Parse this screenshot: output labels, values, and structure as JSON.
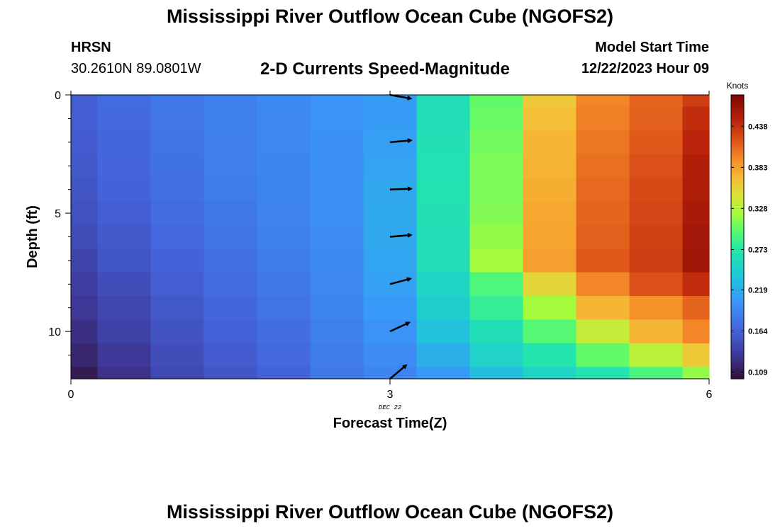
{
  "page": {
    "title": "Mississippi River Outflow Ocean Cube (NGOFS2)",
    "title_repeat": "Mississippi River Outflow Ocean Cube (NGOFS2)",
    "station": "HRSN",
    "coordinates": "30.2610N  89.0801W",
    "product": "2-D Currents Speed-Magnitude",
    "model_start_label": "Model Start Time",
    "model_start_value": "12/22/2023 Hour 09"
  },
  "chart_data": {
    "type": "heatmap",
    "xlabel": "Forecast Time(Z)",
    "ylabel": "Depth (ft)",
    "xlim": [
      0,
      6
    ],
    "ylim": [
      0,
      12
    ],
    "y_inverted": true,
    "x_ticks": [
      "0",
      "3",
      "6"
    ],
    "x_tick_values": [
      0,
      3,
      6
    ],
    "x_date_label": "DEC 22",
    "y_ticks": [
      "0",
      "5",
      "10"
    ],
    "y_tick_values": [
      0,
      5,
      10
    ],
    "x_edges": [
      0,
      0.25,
      0.75,
      1.25,
      1.75,
      2.25,
      2.75,
      3.25,
      3.75,
      4.25,
      4.75,
      5.25,
      5.75,
      6
    ],
    "y_edges": [
      0,
      0.5,
      1.5,
      2.5,
      3.5,
      4.5,
      5.5,
      6.5,
      7.5,
      8.5,
      9.5,
      10.5,
      11.5,
      12
    ],
    "speed_knots": [
      [
        0.16,
        0.17,
        0.18,
        0.187,
        0.193,
        0.2,
        0.207,
        0.262,
        0.3,
        0.36,
        0.395,
        0.41,
        0.43
      ],
      [
        0.16,
        0.168,
        0.178,
        0.186,
        0.192,
        0.2,
        0.207,
        0.262,
        0.302,
        0.365,
        0.398,
        0.412,
        0.44
      ],
      [
        0.158,
        0.166,
        0.176,
        0.185,
        0.191,
        0.199,
        0.209,
        0.263,
        0.305,
        0.37,
        0.402,
        0.415,
        0.445
      ],
      [
        0.156,
        0.165,
        0.175,
        0.184,
        0.19,
        0.199,
        0.212,
        0.265,
        0.308,
        0.372,
        0.405,
        0.42,
        0.45
      ],
      [
        0.153,
        0.163,
        0.174,
        0.183,
        0.189,
        0.198,
        0.214,
        0.266,
        0.308,
        0.375,
        0.408,
        0.423,
        0.452
      ],
      [
        0.15,
        0.16,
        0.171,
        0.18,
        0.188,
        0.197,
        0.216,
        0.264,
        0.31,
        0.378,
        0.41,
        0.425,
        0.455
      ],
      [
        0.146,
        0.157,
        0.167,
        0.177,
        0.186,
        0.195,
        0.215,
        0.262,
        0.315,
        0.38,
        0.412,
        0.428,
        0.458
      ],
      [
        0.141,
        0.153,
        0.163,
        0.173,
        0.183,
        0.193,
        0.213,
        0.262,
        0.32,
        0.382,
        0.415,
        0.43,
        0.46
      ],
      [
        0.136,
        0.148,
        0.16,
        0.17,
        0.18,
        0.191,
        0.21,
        0.252,
        0.292,
        0.352,
        0.395,
        0.42,
        0.44
      ],
      [
        0.13,
        0.143,
        0.156,
        0.166,
        0.176,
        0.189,
        0.205,
        0.245,
        0.28,
        0.32,
        0.37,
        0.39,
        0.41
      ],
      [
        0.124,
        0.138,
        0.152,
        0.162,
        0.172,
        0.186,
        0.2,
        0.232,
        0.262,
        0.295,
        0.335,
        0.37,
        0.395
      ],
      [
        0.117,
        0.132,
        0.148,
        0.158,
        0.168,
        0.183,
        0.195,
        0.22,
        0.248,
        0.268,
        0.3,
        0.33,
        0.36
      ],
      [
        0.108,
        0.126,
        0.144,
        0.154,
        0.164,
        0.18,
        0.19,
        0.205,
        0.23,
        0.25,
        0.268,
        0.29,
        0.315
      ]
    ],
    "vectors": {
      "time": 3,
      "depths": [
        0,
        2,
        4,
        6,
        8,
        10,
        12
      ],
      "direction_deg": [
        -10,
        5,
        2,
        5,
        15,
        25,
        40
      ],
      "note_direction": "degrees above horizontal"
    },
    "colorbar": {
      "label": "Knots",
      "min": 0.1,
      "max": 0.48,
      "ticks": [
        0.109,
        0.164,
        0.219,
        0.273,
        0.328,
        0.383,
        0.438
      ],
      "tick_labels": [
        "0.109",
        "0.164",
        "0.219",
        "0.273",
        "0.328",
        "0.383",
        "0.438"
      ],
      "colormap": "turbo"
    }
  }
}
